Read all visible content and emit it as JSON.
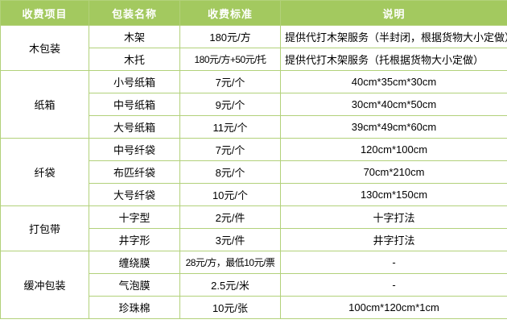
{
  "table": {
    "headers": [
      "收费项目",
      "包装名称",
      "收费标准",
      "说明"
    ],
    "groups": [
      {
        "category": "木包装",
        "rows": [
          {
            "name": "木架",
            "price": "180元/方",
            "note": "提供代打木架服务（半封闭，根据货物大小定做）",
            "note_align": "left"
          },
          {
            "name": "木托",
            "price": "180元/方+50元/托",
            "note": "提供代打木架服务（托根据货物大小定做）",
            "note_align": "left"
          }
        ]
      },
      {
        "category": "纸箱",
        "rows": [
          {
            "name": "小号纸箱",
            "price": "7元/个",
            "note": "40cm*35cm*30cm",
            "note_align": "center"
          },
          {
            "name": "中号纸箱",
            "price": "9元/个",
            "note": "30cm*40cm*50cm",
            "note_align": "center"
          },
          {
            "name": "大号纸箱",
            "price": "11元/个",
            "note": "39cm*49cm*60cm",
            "note_align": "center"
          }
        ]
      },
      {
        "category": "纤袋",
        "rows": [
          {
            "name": "中号纤袋",
            "price": "7元/个",
            "note": "120cm*100cm",
            "note_align": "center"
          },
          {
            "name": "布匹纤袋",
            "price": "8元/个",
            "note": "70cm*210cm",
            "note_align": "center"
          },
          {
            "name": "大号纤袋",
            "price": "10元/个",
            "note": "130cm*150cm",
            "note_align": "center"
          }
        ]
      },
      {
        "category": "打包带",
        "rows": [
          {
            "name": "十字型",
            "price": "2元/件",
            "note": "十字打法",
            "note_align": "center"
          },
          {
            "name": "井字形",
            "price": "3元/件",
            "note": "井字打法",
            "note_align": "center"
          }
        ]
      },
      {
        "category": "缓冲包装",
        "rows": [
          {
            "name": "缠绕膜",
            "price": "28元/方，最低10元/票",
            "note": "-",
            "note_align": "center"
          },
          {
            "name": "气泡膜",
            "price": "2.5元/米",
            "note": "-",
            "note_align": "center"
          },
          {
            "name": "珍珠棉",
            "price": "10元/张",
            "note": "100cm*120cm*1cm",
            "note_align": "center"
          }
        ]
      }
    ],
    "colors": {
      "header_bg": "#a3c95f",
      "header_text": "#ffffff",
      "border": "#b2d17a",
      "cell_bg": "#ffffff",
      "cell_text": "#000000"
    }
  }
}
